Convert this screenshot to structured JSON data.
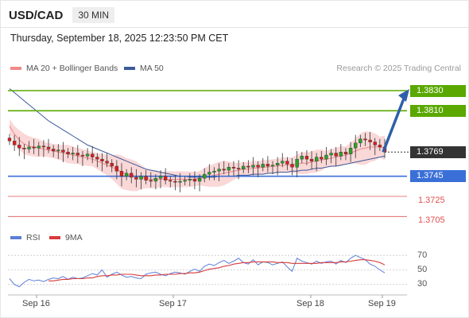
{
  "header": {
    "symbol": "USD/CAD",
    "timeframe": "30 MIN",
    "timestamp": "Thursday, September 18, 2025 12:23:50 PM CET"
  },
  "legend": {
    "ma20": "MA 20 + Bollinger Bands",
    "ma50": "MA 50",
    "credit": "Research © 2025 Trading Central"
  },
  "rsi_legend": {
    "rsi": "RSI",
    "ma": "9MA"
  },
  "colors": {
    "resistance": "#5aa800",
    "support": "#3a6fd8",
    "minor": "#e05050",
    "current": "#333333",
    "ma20_band": "#f8c8c8",
    "ma20": "#f08a8a",
    "ma50": "#3b5b9a",
    "rsi": "#5b7fd6",
    "rsi_ma": "#d83a3a",
    "candle_up": "#2aa02a",
    "candle_down": "#d62020"
  },
  "levels": [
    {
      "label": "1.3830",
      "value": 1.383,
      "kind": "resistance"
    },
    {
      "label": "1.3810",
      "value": 1.381,
      "kind": "resistance"
    },
    {
      "label": "1.3769",
      "value": 1.3769,
      "kind": "current"
    },
    {
      "label": "1.3745",
      "value": 1.3745,
      "kind": "support"
    },
    {
      "label": "1.3725",
      "value": 1.3725,
      "kind": "minor"
    },
    {
      "label": "1.3705",
      "value": 1.3705,
      "kind": "minor"
    }
  ],
  "rsi_ticks": [
    "70",
    "50",
    "30"
  ],
  "x_labels": [
    "Sep 16",
    "Sep 17",
    "Sep 18",
    "Sep 19"
  ],
  "chart_data": {
    "type": "candlestick",
    "title": "USD/CAD 30 MIN",
    "x_ticks": [
      "Sep 16",
      "Sep 17",
      "Sep 18",
      "Sep 19"
    ],
    "ylim": [
      1.3695,
      1.3845
    ],
    "rsi_ylim": [
      20,
      80
    ],
    "series": [
      {
        "name": "Price",
        "values": [
          1.378,
          1.3776,
          1.3773,
          1.3772,
          1.3774,
          1.3773,
          1.3775,
          1.3774,
          1.3772,
          1.377,
          1.3771,
          1.3769,
          1.3767,
          1.3768,
          1.3766,
          1.3765,
          1.3767,
          1.3764,
          1.3762,
          1.376,
          1.3758,
          1.3755,
          1.375,
          1.3745,
          1.3748,
          1.3744,
          1.3742,
          1.3745,
          1.3741,
          1.374,
          1.3743,
          1.3745,
          1.3741,
          1.374,
          1.3739,
          1.374,
          1.3741,
          1.3742,
          1.374,
          1.3743,
          1.3747,
          1.3749,
          1.375,
          1.3752,
          1.3751,
          1.3754,
          1.3753,
          1.3752,
          1.3755,
          1.3754,
          1.3756,
          1.3754,
          1.3757,
          1.3755,
          1.3756,
          1.3758,
          1.376,
          1.3757,
          1.3754,
          1.3762,
          1.3765,
          1.3762,
          1.376,
          1.3764,
          1.3762,
          1.3766,
          1.3768,
          1.3765,
          1.3769,
          1.3767,
          1.3773,
          1.3778,
          1.3782,
          1.3781,
          1.3779,
          1.3776,
          1.3774,
          1.3769
        ]
      },
      {
        "name": "MA 20",
        "values": [
          1.3795,
          1.3787,
          1.3781,
          1.3777,
          1.3775,
          1.3774,
          1.3773,
          1.3772,
          1.3771,
          1.377,
          1.3769,
          1.3768,
          1.3767,
          1.3766,
          1.3765,
          1.3764,
          1.3763,
          1.3762,
          1.376,
          1.3758,
          1.3756,
          1.3754,
          1.3752,
          1.3749,
          1.3747,
          1.3746,
          1.3745,
          1.3744,
          1.3743,
          1.3742,
          1.3742,
          1.3742,
          1.3742,
          1.3742,
          1.3742,
          1.3742,
          1.3742,
          1.3742,
          1.3742,
          1.3743,
          1.3744,
          1.3745,
          1.3746,
          1.3747,
          1.3748,
          1.3749,
          1.375,
          1.3751,
          1.3752,
          1.3752,
          1.3753,
          1.3753,
          1.3754,
          1.3754,
          1.3755,
          1.3755,
          1.3756,
          1.3756,
          1.3756,
          1.3757,
          1.3758,
          1.3758,
          1.3759,
          1.376,
          1.3761,
          1.3762,
          1.3763,
          1.3764,
          1.3765,
          1.3766,
          1.3768,
          1.377,
          1.3772,
          1.3773,
          1.3774,
          1.3774,
          1.3774,
          1.3773
        ]
      },
      {
        "name": "MA 50",
        "values": [
          1.3832,
          1.3828,
          1.3824,
          1.382,
          1.3816,
          1.3812,
          1.3808,
          1.3804,
          1.38,
          1.3797,
          1.3794,
          1.3791,
          1.3788,
          1.3785,
          1.3782,
          1.3779,
          1.3776,
          1.3774,
          1.3772,
          1.377,
          1.3768,
          1.3766,
          1.3764,
          1.3762,
          1.376,
          1.3758,
          1.3756,
          1.3754,
          1.3752,
          1.3751,
          1.375,
          1.3749,
          1.3748,
          1.3747,
          1.3746,
          1.3745,
          1.3745,
          1.3744,
          1.3744,
          1.3744,
          1.3744,
          1.3744,
          1.3744,
          1.3745,
          1.3745,
          1.3745,
          1.3745,
          1.3746,
          1.3746,
          1.3746,
          1.3747,
          1.3747,
          1.3747,
          1.3748,
          1.3748,
          1.3749,
          1.3749,
          1.3749,
          1.375,
          1.375,
          1.3751,
          1.3751,
          1.3752,
          1.3753,
          1.3753,
          1.3754,
          1.3755,
          1.3755,
          1.3756,
          1.3757,
          1.3758,
          1.3759,
          1.376,
          1.3761,
          1.3762,
          1.3763,
          1.3764,
          1.3765
        ]
      },
      {
        "name": "RSI",
        "values": [
          38,
          30,
          27,
          33,
          37,
          35,
          36,
          34,
          37,
          39,
          38,
          41,
          37,
          40,
          38,
          39,
          42,
          45,
          43,
          50,
          40,
          44,
          47,
          43,
          40,
          41,
          39,
          38,
          44,
          46,
          47,
          44,
          42,
          45,
          47,
          46,
          44,
          48,
          51,
          48,
          55,
          58,
          56,
          60,
          63,
          59,
          62,
          66,
          60,
          58,
          64,
          57,
          61,
          60,
          57,
          59,
          61,
          54,
          48,
          66,
          62,
          60,
          58,
          62,
          59,
          61,
          62,
          58,
          63,
          60,
          66,
          70,
          67,
          64,
          58,
          55,
          50,
          46
        ]
      },
      {
        "name": "9MA",
        "values": [
          null,
          null,
          null,
          null,
          null,
          null,
          null,
          null,
          35,
          35,
          36,
          37,
          37,
          38,
          38,
          38,
          39,
          39,
          41,
          42,
          42,
          43,
          43,
          44,
          44,
          44,
          43,
          42,
          42,
          42,
          43,
          43,
          44,
          44,
          44,
          45,
          45,
          46,
          46,
          47,
          49,
          51,
          52,
          53,
          55,
          56,
          58,
          59,
          60,
          60,
          61,
          61,
          61,
          61,
          61,
          60,
          60,
          60,
          59,
          59,
          59,
          59,
          59,
          59,
          60,
          60,
          60,
          60,
          61,
          61,
          62,
          63,
          64,
          64,
          63,
          62,
          60,
          57
        ]
      }
    ],
    "levels": [
      1.383,
      1.381,
      1.3769,
      1.3745,
      1.3725,
      1.3705
    ],
    "forecast_arrow": {
      "from": 1.3769,
      "to": 1.383
    }
  }
}
